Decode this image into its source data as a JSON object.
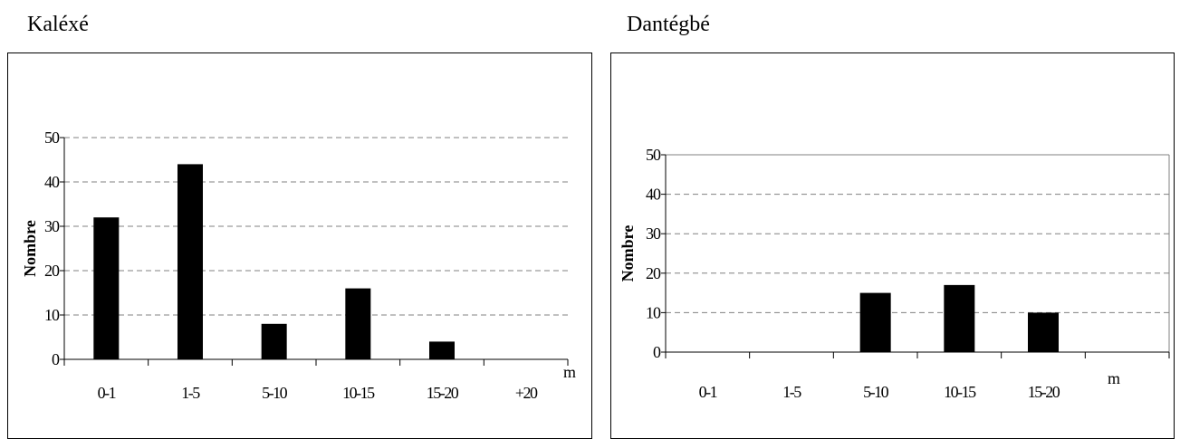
{
  "chart_data": [
    {
      "type": "bar",
      "title": "Kaléxé",
      "ylabel": "Nombre",
      "xunit": "m",
      "categories": [
        "0-1",
        "1-5",
        "5-10",
        "10-15",
        "15-20",
        "+20"
      ],
      "values": [
        32,
        44,
        8,
        16,
        4,
        0
      ],
      "ylim": [
        0,
        50
      ],
      "yticks": [
        "0",
        "10",
        "20",
        "30",
        "40",
        "50"
      ],
      "grid": true,
      "bar_color": "#000000"
    },
    {
      "type": "bar",
      "title": "Dantégbé",
      "ylabel": "Nombre",
      "xunit": "m",
      "categories": [
        "0-1",
        "1-5",
        "5-10",
        "10-15",
        "15-20"
      ],
      "values": [
        0,
        0,
        15,
        17,
        10
      ],
      "ylim": [
        0,
        50
      ],
      "yticks": [
        "0",
        "10",
        "20",
        "30",
        "40",
        "50"
      ],
      "grid": true,
      "bar_color": "#000000"
    }
  ]
}
